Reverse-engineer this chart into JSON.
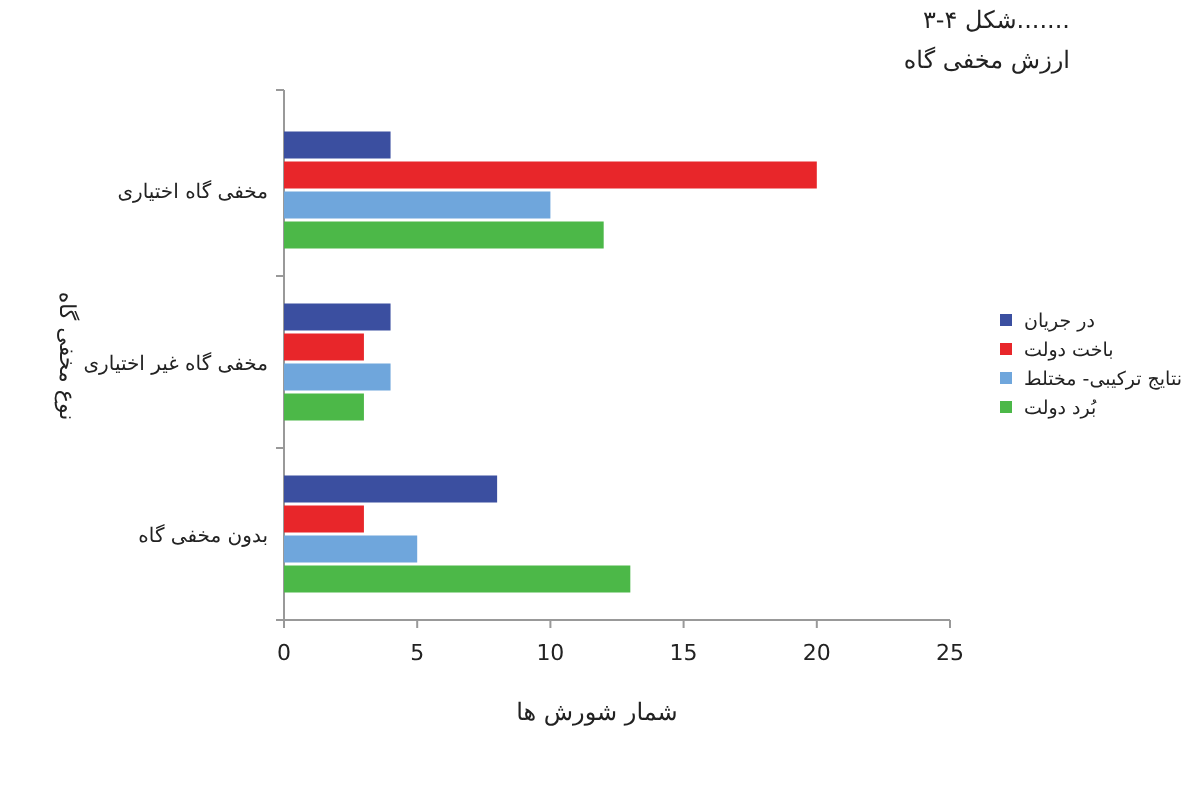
{
  "chart_data": {
    "type": "bar",
    "orientation": "horizontal",
    "title": "شکل ۴-۳.......",
    "subtitle": "ارزش مخفی گاه",
    "xlabel": "شمار شورش ها",
    "ylabel": "نوع مخفی گاه",
    "categories": [
      "مخفی گاه اختیاری",
      "مخفی گاه غیر اختیاری",
      "بدون مخفی گاه"
    ],
    "series": [
      {
        "name": "در جریان",
        "color": "#3b4fa0",
        "values": [
          4,
          4,
          8
        ]
      },
      {
        "name": "باخت دولت",
        "color": "#e8262a",
        "values": [
          20,
          3,
          3
        ]
      },
      {
        "name": "نتایج ترکیبی- مختلط",
        "color": "#6fa6dc",
        "values": [
          10,
          4,
          5
        ]
      },
      {
        "name": "بُرد دولت",
        "color": "#4cb848",
        "values": [
          12,
          3,
          13
        ]
      }
    ],
    "xlim": [
      0,
      25
    ],
    "xticks": [
      0,
      5,
      10,
      15,
      20,
      25
    ],
    "legend": "right"
  }
}
